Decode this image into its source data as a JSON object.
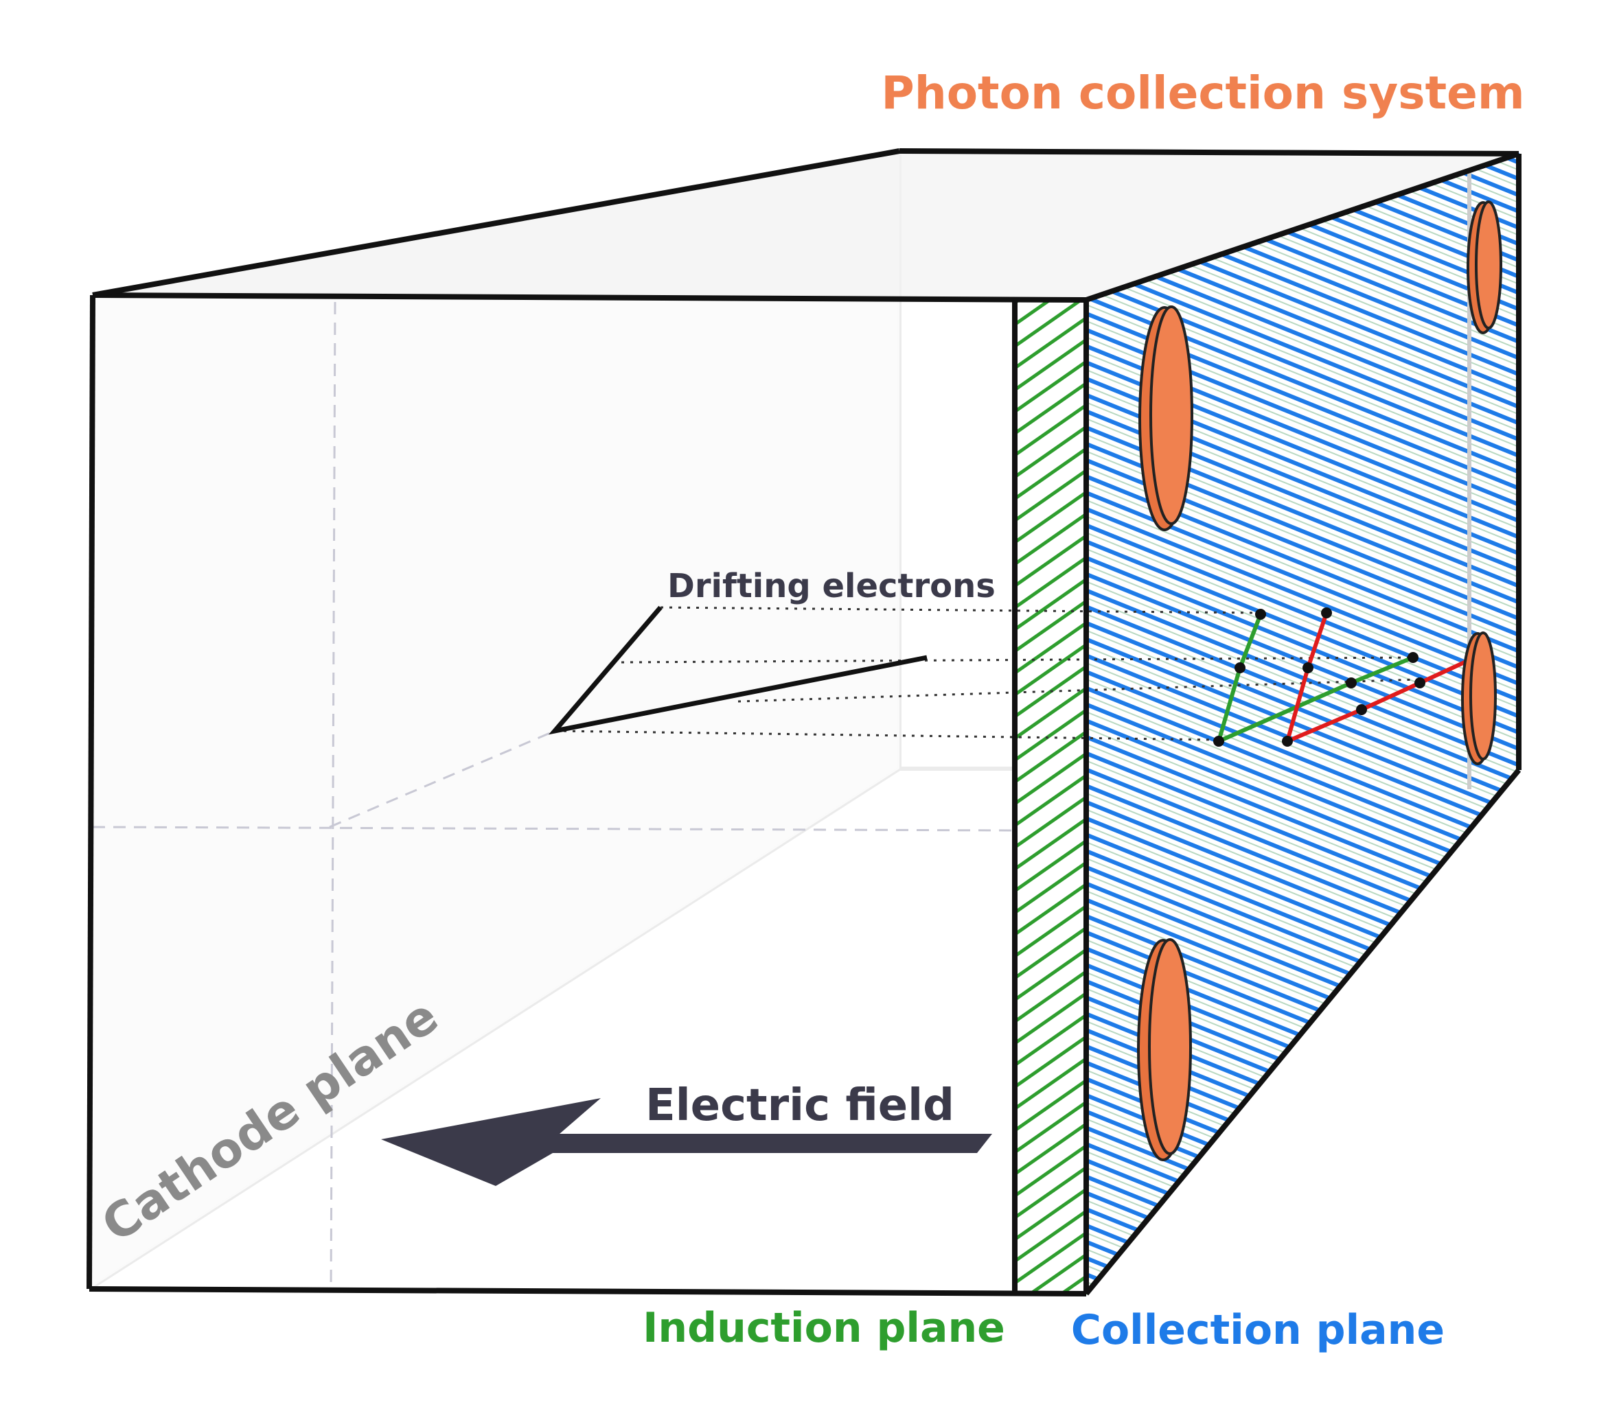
{
  "labels": {
    "photon_system": "Photon collection system",
    "drifting_electrons": "Drifting electrons",
    "electric_field": "Electric field",
    "cathode_plane": "Cathode plane",
    "induction_plane": "Induction plane",
    "collection_plane": "Collection plane"
  },
  "colors": {
    "photon": "#F0814F",
    "induction": "#2E9E2E",
    "collection": "#1E7BE8",
    "arrow": "#3B3A4A",
    "cathode_text": "#8A8A8A",
    "track_red": "#E01C1C"
  }
}
